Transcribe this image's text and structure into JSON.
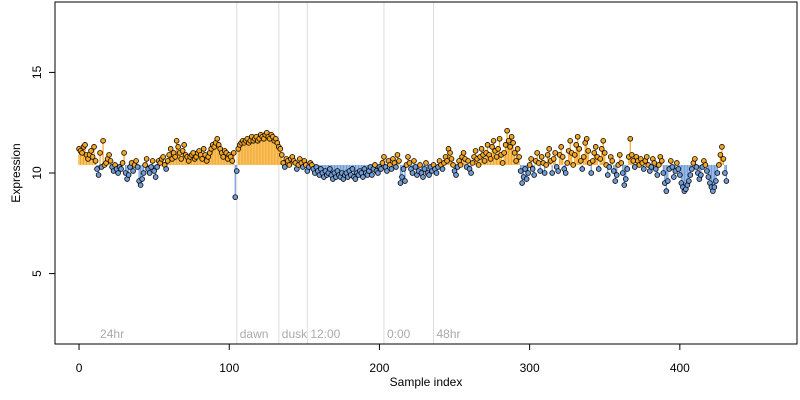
{
  "chart_data": {
    "type": "scatter",
    "xlabel": "Sample index",
    "ylabel": "Expression",
    "xlim": [
      -16,
      478
    ],
    "ylim": [
      1.5,
      18.5
    ],
    "x_ticks": [
      0,
      100,
      200,
      300,
      400
    ],
    "y_ticks": [
      5,
      10,
      15
    ],
    "baseline": 10.4,
    "colors": {
      "above": "#f5a623",
      "below": "#6f9bd8",
      "point_stroke": "#000000",
      "vline": "#dddddd",
      "region_label": "#aaaaaa"
    },
    "regions": [
      {
        "x": 12,
        "label": "24hr",
        "line": false
      },
      {
        "x": 105,
        "label": "dawn",
        "line": true
      },
      {
        "x": 133,
        "label": "dusk",
        "line": true
      },
      {
        "x": 152,
        "label": "12:00",
        "line": true
      },
      {
        "x": 203,
        "label": "0:00",
        "line": true
      },
      {
        "x": 236,
        "label": "48hr",
        "line": true
      }
    ],
    "y": [
      11.2,
      11.1,
      11.0,
      11.3,
      11.4,
      10.9,
      10.7,
      10.9,
      11.1,
      10.8,
      11.3,
      10.6,
      10.2,
      9.9,
      11.0,
      10.3,
      11.6,
      10.4,
      10.5,
      10.7,
      10.9,
      10.6,
      10.3,
      10.1,
      10.4,
      10.2,
      10.0,
      10.3,
      10.2,
      10.5,
      11.0,
      10.0,
      9.7,
      9.9,
      10.3,
      10.5,
      10.1,
      10.4,
      10.6,
      10.3,
      9.6,
      9.4,
      9.7,
      10.0,
      10.4,
      10.7,
      10.2,
      10.0,
      10.3,
      10.6,
      10.1,
      9.8,
      10.3,
      10.6,
      10.5,
      10.7,
      10.8,
      10.4,
      10.2,
      10.6,
      10.9,
      11.2,
      10.7,
      11.0,
      10.8,
      11.6,
      11.3,
      11.0,
      10.7,
      11.1,
      11.4,
      10.9,
      10.8,
      10.6,
      10.8,
      10.9,
      11.0,
      10.7,
      10.8,
      11.0,
      11.1,
      10.9,
      10.7,
      11.2,
      10.9,
      10.6,
      10.8,
      11.0,
      11.2,
      11.4,
      11.3,
      11.5,
      11.7,
      11.4,
      11.2,
      11.0,
      10.8,
      11.1,
      11.0,
      10.7,
      10.9,
      10.8,
      10.6,
      11.0,
      8.8,
      10.1,
      11.2,
      11.4,
      11.5,
      11.6,
      11.5,
      11.6,
      11.7,
      11.5,
      11.6,
      11.8,
      11.6,
      11.7,
      11.8,
      11.6,
      11.7,
      11.9,
      11.8,
      11.7,
      11.9,
      12.0,
      11.8,
      11.7,
      11.9,
      11.8,
      11.6,
      11.7,
      11.5,
      11.3,
      11.2,
      10.9,
      10.5,
      10.3,
      10.7,
      10.6,
      10.4,
      10.7,
      10.8,
      10.6,
      10.5,
      10.2,
      10.4,
      10.7,
      10.5,
      10.3,
      10.6,
      10.4,
      10.1,
      10.3,
      10.5,
      10.4,
      10.2,
      10.0,
      10.3,
      10.1,
      9.9,
      10.2,
      10.0,
      9.8,
      10.1,
      9.9,
      10.0,
      10.2,
      9.9,
      9.7,
      10.0,
      9.8,
      10.1,
      9.9,
      9.8,
      10.0,
      9.7,
      9.9,
      10.0,
      9.8,
      10.1,
      9.9,
      10.2,
      9.8,
      9.7,
      10.0,
      9.9,
      10.1,
      10.0,
      9.8,
      10.2,
      10.0,
      9.9,
      10.1,
      10.3,
      9.9,
      10.2,
      10.4,
      10.1,
      10.0,
      10.3,
      10.2,
      10.5,
      10.8,
      10.3,
      10.1,
      10.6,
      10.4,
      10.2,
      10.7,
      10.5,
      10.3,
      10.9,
      10.6,
      9.5,
      9.8,
      10.2,
      9.6,
      10.4,
      10.8,
      10.5,
      10.2,
      10.0,
      10.6,
      10.3,
      9.9,
      10.1,
      10.4,
      10.0,
      9.8,
      10.2,
      10.5,
      10.0,
      9.9,
      10.3,
      10.1,
      10.4,
      10.2,
      10.0,
      10.3,
      10.6,
      10.4,
      10.2,
      10.5,
      10.8,
      10.6,
      11.2,
      11.0,
      10.7,
      10.4,
      10.1,
      9.9,
      10.3,
      10.6,
      10.4,
      10.8,
      11.0,
      10.7,
      10.3,
      10.6,
      10.2,
      10.0,
      10.5,
      10.8,
      11.1,
      10.7,
      10.4,
      10.8,
      11.2,
      10.9,
      10.6,
      11.0,
      11.4,
      10.9,
      10.7,
      11.3,
      11.6,
      11.1,
      10.8,
      11.2,
      11.7,
      10.9,
      10.5,
      11.0,
      11.4,
      12.1,
      11.6,
      11.3,
      11.8,
      11.5,
      11.0,
      10.6,
      11.2,
      10.8,
      10.1,
      9.5,
      9.8,
      10.2,
      9.7,
      10.0,
      10.4,
      10.7,
      10.2,
      9.9,
      10.6,
      11.0,
      10.5,
      10.1,
      10.8,
      10.5,
      10.0,
      10.4,
      10.9,
      11.2,
      10.6,
      10.0,
      10.7,
      11.0,
      10.3,
      10.1,
      10.9,
      11.3,
      10.8,
      10.2,
      10.0,
      10.5,
      11.1,
      11.6,
      11.0,
      10.4,
      10.9,
      11.4,
      11.8,
      11.2,
      10.6,
      10.2,
      10.8,
      11.5,
      11.7,
      11.1,
      10.5,
      10.0,
      10.6,
      11.0,
      11.3,
      10.8,
      10.2,
      10.7,
      11.2,
      11.6,
      11.0,
      10.4,
      9.9,
      10.3,
      10.8,
      10.6,
      10.1,
      9.6,
      9.9,
      10.4,
      10.9,
      10.5,
      10.0,
      9.4,
      9.7,
      10.2,
      10.8,
      11.7,
      10.9,
      10.6,
      10.3,
      10.8,
      10.6,
      10.4,
      10.7,
      10.5,
      10.2,
      10.6,
      10.8,
      10.4,
      10.1,
      10.3,
      10.7,
      10.5,
      10.2,
      9.9,
      10.4,
      10.8,
      10.6,
      10.0,
      9.5,
      9.1,
      9.6,
      10.2,
      10.6,
      10.3,
      9.8,
      10.1,
      10.5,
      10.2,
      9.9,
      9.5,
      9.3,
      9.1,
      9.2,
      9.4,
      9.6,
      9.9,
      10.2,
      10.5,
      10.7,
      10.3,
      10.0,
      9.7,
      9.9,
      10.3,
      10.6,
      10.4,
      10.1,
      9.8,
      9.5,
      9.3,
      9.1,
      9.3,
      9.6,
      10.0,
      10.4,
      10.9,
      11.3,
      10.7,
      10.0,
      9.6
    ]
  }
}
